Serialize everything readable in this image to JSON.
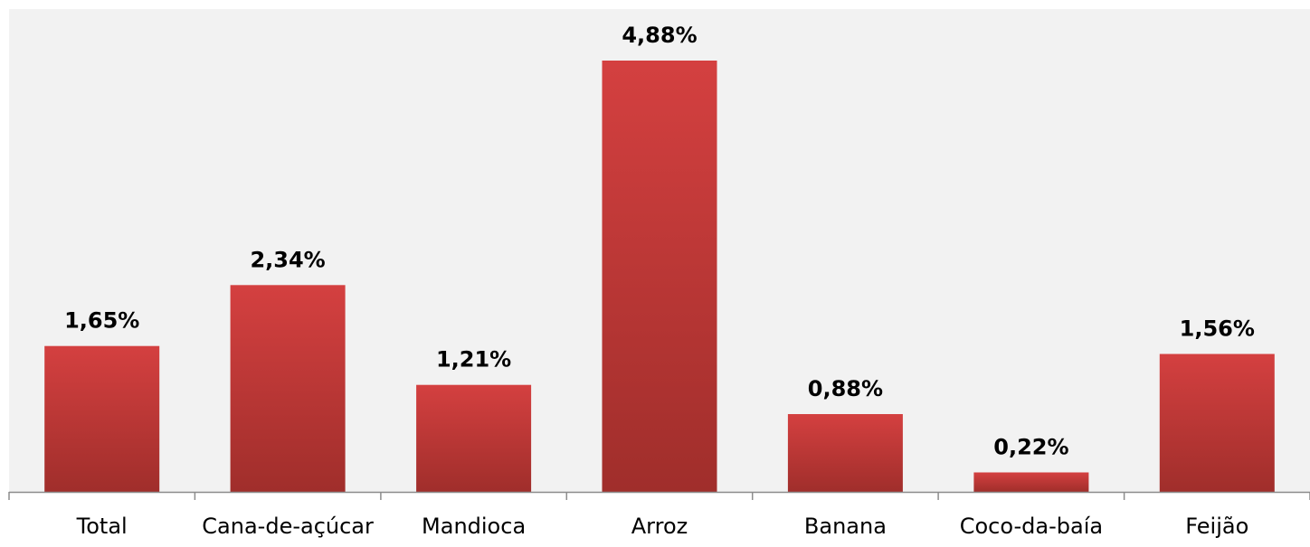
{
  "chart_data": {
    "type": "bar",
    "title": "",
    "xlabel": "",
    "ylabel": "",
    "categories": [
      "Total",
      "Cana-de-açúcar",
      "Mandioca",
      "Arroz",
      "Banana",
      "Coco-da-baía",
      "Feijão"
    ],
    "values": [
      1.65,
      2.34,
      1.21,
      4.88,
      0.88,
      0.22,
      1.56
    ],
    "value_labels": [
      "1,65%",
      "2,34%",
      "1,21%",
      "4,88%",
      "0,88%",
      "0,22%",
      "1,56%"
    ],
    "ylim": [
      0,
      5.3
    ],
    "grid": false,
    "legend": "none",
    "colors": {
      "bar_top": "#D44040",
      "bar_bottom": "#A02E2B",
      "plot_background": "#F2F2F2",
      "axis": "#8C8C8C"
    }
  }
}
